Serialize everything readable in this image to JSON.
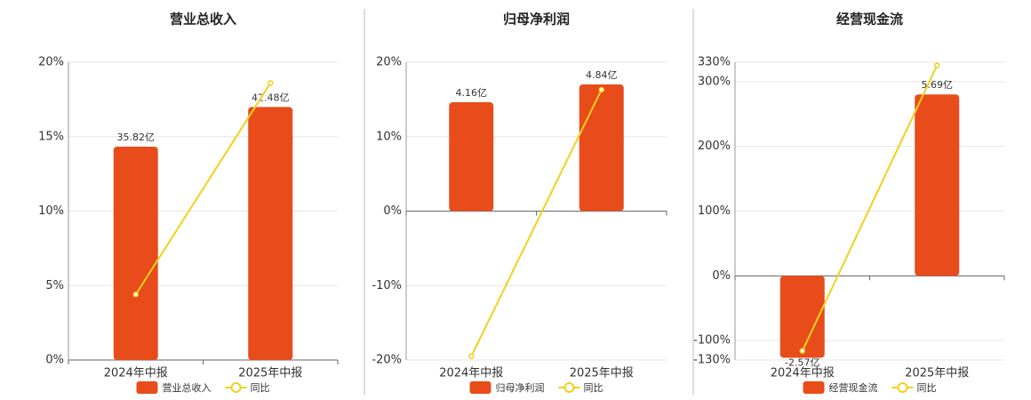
{
  "chart_data": [
    {
      "type": "bar",
      "title": "营业总收入",
      "categories": [
        "2024年中报",
        "2025年中报"
      ],
      "series": [
        {
          "name": "营业总收入",
          "color": "#e84c1a",
          "axis": "y2",
          "values": [
            35.82,
            42.48
          ],
          "value_labels": [
            "35.82亿",
            "42.48亿"
          ]
        },
        {
          "name": "同比",
          "color": "#f2d11c",
          "type": "line",
          "values": [
            4.4,
            18.6
          ]
        }
      ],
      "ylim": [
        0,
        20
      ],
      "yticks": [
        {
          "value": 0,
          "label": "0%"
        },
        {
          "value": 5,
          "label": "5%"
        },
        {
          "value": 10,
          "label": "10%"
        },
        {
          "value": 15,
          "label": "15%"
        },
        {
          "value": 20,
          "label": "20%"
        }
      ],
      "y2lim": [
        0,
        50
      ],
      "grid": true
    },
    {
      "type": "bar",
      "title": "归母净利润",
      "categories": [
        "2024年中报",
        "2025年中报"
      ],
      "series": [
        {
          "name": "归母净利润",
          "color": "#e84c1a",
          "axis": "y2",
          "values": [
            4.16,
            4.84
          ],
          "value_labels": [
            "4.16亿",
            "4.84亿"
          ]
        },
        {
          "name": "同比",
          "color": "#f2d11c",
          "type": "line",
          "values": [
            -19.5,
            16.3
          ]
        }
      ],
      "ylim": [
        -20,
        20
      ],
      "yticks": [
        {
          "value": -20,
          "label": "-20%"
        },
        {
          "value": -10,
          "label": "-10%"
        },
        {
          "value": 0,
          "label": "0%"
        },
        {
          "value": 10,
          "label": "10%"
        },
        {
          "value": 20,
          "label": "20%"
        }
      ],
      "y2lim": [
        -5.69,
        5.69
      ],
      "grid": true
    },
    {
      "type": "bar",
      "title": "经营现金流",
      "categories": [
        "2024年中报",
        "2025年中报"
      ],
      "series": [
        {
          "name": "经营现金流",
          "color": "#e84c1a",
          "axis": "y2",
          "values": [
            -2.57,
            5.69
          ],
          "value_labels": [
            "-2.57亿",
            "5.69亿"
          ]
        },
        {
          "name": "同比",
          "color": "#f2d11c",
          "type": "line",
          "values": [
            -116,
            325
          ]
        }
      ],
      "ylim": [
        -130,
        330
      ],
      "yticks": [
        {
          "value": -130,
          "label": "-130%"
        },
        {
          "value": -100,
          "label": "-100%"
        },
        {
          "value": 0,
          "label": "0%"
        },
        {
          "value": 100,
          "label": "100%"
        },
        {
          "value": 200,
          "label": "200%"
        },
        {
          "value": 300,
          "label": "300%"
        },
        {
          "value": 330,
          "label": "330%"
        }
      ],
      "y2lim": [
        -2.64,
        6.7
      ],
      "grid": true
    }
  ]
}
